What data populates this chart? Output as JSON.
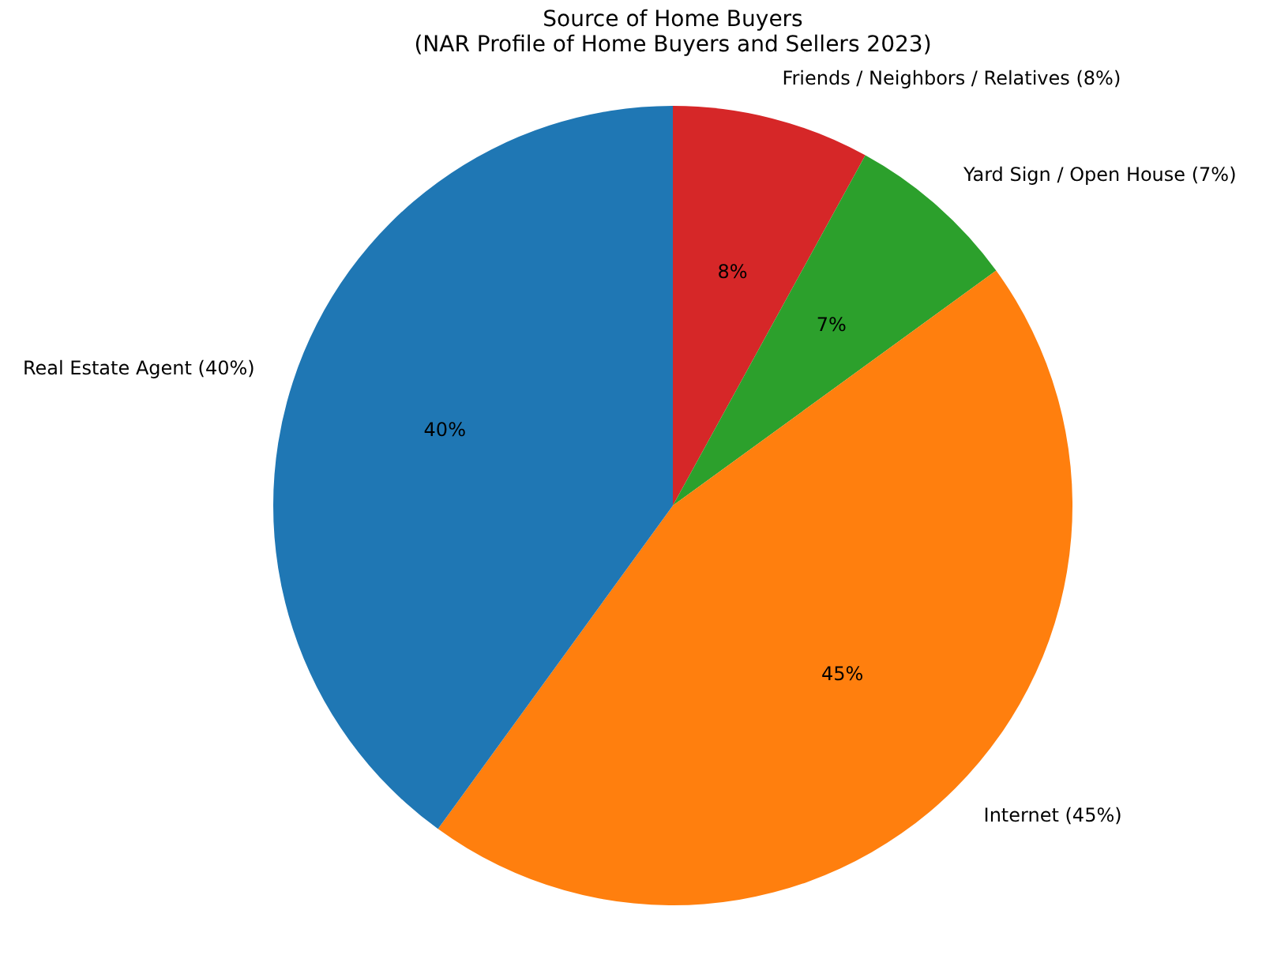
{
  "chart_data": {
    "type": "pie",
    "title": "Source of Home Buyers\n(NAR Profile of Home Buyers and Sellers 2023)",
    "categories": [
      "Real Estate Agent (40%)",
      "Internet (45%)",
      "Yard Sign / Open House (7%)",
      "Friends / Neighbors / Relatives (8%)"
    ],
    "values": [
      40,
      45,
      7,
      8
    ],
    "value_labels": [
      "40%",
      "45%",
      "7%",
      "8%"
    ],
    "colors": [
      "#1f77b4",
      "#ff7f0e",
      "#2ca02c",
      "#d62728"
    ],
    "legend": false
  }
}
